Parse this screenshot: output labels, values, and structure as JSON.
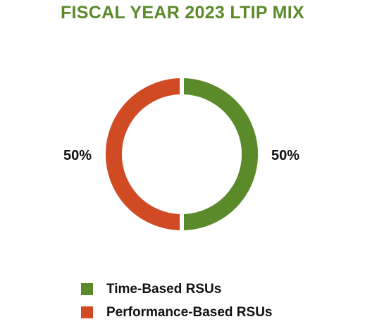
{
  "chart_data": {
    "type": "pie",
    "style": "donut",
    "title": "FISCAL YEAR 2023 LTIP MIX",
    "categories": [
      "Time-Based RSUs",
      "Performance-Based RSUs"
    ],
    "values": [
      50,
      50
    ],
    "value_labels": [
      "50%",
      "50%"
    ],
    "colors": [
      "#5a8a2a",
      "#d04a23"
    ],
    "legend_position": "bottom-left"
  }
}
